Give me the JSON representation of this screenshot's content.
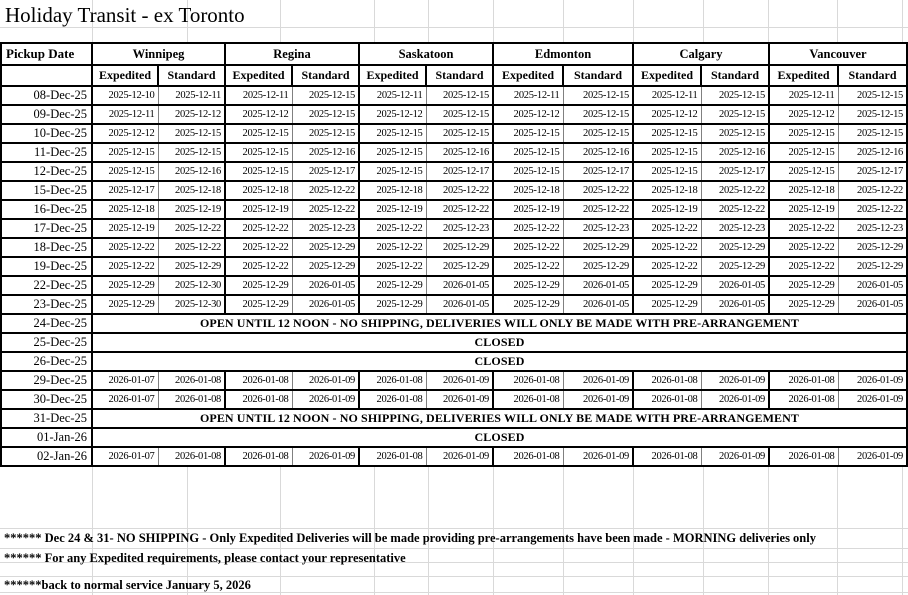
{
  "page": {
    "title": "Holiday Transit - ex Toronto"
  },
  "table": {
    "pickup_header": "Pickup Date",
    "cities": [
      "Winnipeg",
      "Regina",
      "Saskatoon",
      "Edmonton",
      "Calgary",
      "Vancouver"
    ],
    "service_levels": [
      "Expedited",
      "Standard"
    ],
    "rows": [
      {
        "date": "08-Dec-25",
        "type": "data",
        "values": [
          "2025-12-10",
          "2025-12-11",
          "2025-12-11",
          "2025-12-15",
          "2025-12-11",
          "2025-12-15",
          "2025-12-11",
          "2025-12-15",
          "2025-12-11",
          "2025-12-15",
          "2025-12-11",
          "2025-12-15"
        ]
      },
      {
        "date": "09-Dec-25",
        "type": "data",
        "values": [
          "2025-12-11",
          "2025-12-12",
          "2025-12-12",
          "2025-12-15",
          "2025-12-12",
          "2025-12-15",
          "2025-12-12",
          "2025-12-15",
          "2025-12-12",
          "2025-12-15",
          "2025-12-12",
          "2025-12-15"
        ]
      },
      {
        "date": "10-Dec-25",
        "type": "data",
        "values": [
          "2025-12-12",
          "2025-12-15",
          "2025-12-15",
          "2025-12-15",
          "2025-12-15",
          "2025-12-15",
          "2025-12-15",
          "2025-12-15",
          "2025-12-15",
          "2025-12-15",
          "2025-12-15",
          "2025-12-15"
        ]
      },
      {
        "date": "11-Dec-25",
        "type": "data",
        "values": [
          "2025-12-15",
          "2025-12-15",
          "2025-12-15",
          "2025-12-16",
          "2025-12-15",
          "2025-12-16",
          "2025-12-15",
          "2025-12-16",
          "2025-12-15",
          "2025-12-16",
          "2025-12-15",
          "2025-12-16"
        ]
      },
      {
        "date": "12-Dec-25",
        "type": "data",
        "values": [
          "2025-12-15",
          "2025-12-16",
          "2025-12-15",
          "2025-12-17",
          "2025-12-15",
          "2025-12-17",
          "2025-12-15",
          "2025-12-17",
          "2025-12-15",
          "2025-12-17",
          "2025-12-15",
          "2025-12-17"
        ]
      },
      {
        "date": "15-Dec-25",
        "type": "data",
        "values": [
          "2025-12-17",
          "2025-12-18",
          "2025-12-18",
          "2025-12-22",
          "2025-12-18",
          "2025-12-22",
          "2025-12-18",
          "2025-12-22",
          "2025-12-18",
          "2025-12-22",
          "2025-12-18",
          "2025-12-22"
        ]
      },
      {
        "date": "16-Dec-25",
        "type": "data",
        "values": [
          "2025-12-18",
          "2025-12-19",
          "2025-12-19",
          "2025-12-22",
          "2025-12-19",
          "2025-12-22",
          "2025-12-19",
          "2025-12-22",
          "2025-12-19",
          "2025-12-22",
          "2025-12-19",
          "2025-12-22"
        ]
      },
      {
        "date": "17-Dec-25",
        "type": "data",
        "values": [
          "2025-12-19",
          "2025-12-22",
          "2025-12-22",
          "2025-12-23",
          "2025-12-22",
          "2025-12-23",
          "2025-12-22",
          "2025-12-23",
          "2025-12-22",
          "2025-12-23",
          "2025-12-22",
          "2025-12-23"
        ]
      },
      {
        "date": "18-Dec-25",
        "type": "data",
        "values": [
          "2025-12-22",
          "2025-12-22",
          "2025-12-22",
          "2025-12-29",
          "2025-12-22",
          "2025-12-29",
          "2025-12-22",
          "2025-12-29",
          "2025-12-22",
          "2025-12-29",
          "2025-12-22",
          "2025-12-29"
        ]
      },
      {
        "date": "19-Dec-25",
        "type": "data",
        "values": [
          "2025-12-22",
          "2025-12-29",
          "2025-12-22",
          "2025-12-29",
          "2025-12-22",
          "2025-12-29",
          "2025-12-22",
          "2025-12-29",
          "2025-12-22",
          "2025-12-29",
          "2025-12-22",
          "2025-12-29"
        ]
      },
      {
        "date": "22-Dec-25",
        "type": "data",
        "values": [
          "2025-12-29",
          "2025-12-30",
          "2025-12-29",
          "2026-01-05",
          "2025-12-29",
          "2026-01-05",
          "2025-12-29",
          "2026-01-05",
          "2025-12-29",
          "2026-01-05",
          "2025-12-29",
          "2026-01-05"
        ]
      },
      {
        "date": "23-Dec-25",
        "type": "data",
        "values": [
          "2025-12-29",
          "2025-12-30",
          "2025-12-29",
          "2026-01-05",
          "2025-12-29",
          "2026-01-05",
          "2025-12-29",
          "2026-01-05",
          "2025-12-29",
          "2026-01-05",
          "2025-12-29",
          "2026-01-05"
        ]
      },
      {
        "date": "24-Dec-25",
        "type": "message",
        "message": "OPEN UNTIL 12 NOON - NO SHIPPING, DELIVERIES WILL ONLY BE MADE WITH PRE-ARRANGEMENT"
      },
      {
        "date": "25-Dec-25",
        "type": "message",
        "message": "CLOSED"
      },
      {
        "date": "26-Dec-25",
        "type": "message",
        "message": "CLOSED"
      },
      {
        "date": "29-Dec-25",
        "type": "data",
        "values": [
          "2026-01-07",
          "2026-01-08",
          "2026-01-08",
          "2026-01-09",
          "2026-01-08",
          "2026-01-09",
          "2026-01-08",
          "2026-01-09",
          "2026-01-08",
          "2026-01-09",
          "2026-01-08",
          "2026-01-09"
        ]
      },
      {
        "date": "30-Dec-25",
        "type": "data",
        "values": [
          "2026-01-07",
          "2026-01-08",
          "2026-01-08",
          "2026-01-09",
          "2026-01-08",
          "2026-01-09",
          "2026-01-08",
          "2026-01-09",
          "2026-01-08",
          "2026-01-09",
          "2026-01-08",
          "2026-01-09"
        ]
      },
      {
        "date": "31-Dec-25",
        "type": "message",
        "message": "OPEN UNTIL 12 NOON - NO SHIPPING, DELIVERIES WILL ONLY BE MADE WITH PRE-ARRANGEMENT"
      },
      {
        "date": "01-Jan-26",
        "type": "message",
        "message": "CLOSED"
      },
      {
        "date": "02-Jan-26",
        "type": "data",
        "values": [
          "2026-01-07",
          "2026-01-08",
          "2026-01-08",
          "2026-01-09",
          "2026-01-08",
          "2026-01-09",
          "2026-01-08",
          "2026-01-09",
          "2026-01-08",
          "2026-01-09",
          "2026-01-08",
          "2026-01-09"
        ]
      }
    ]
  },
  "notes": {
    "line1": "****** Dec 24 & 31- NO SHIPPING - Only Expedited Deliveries will be made providing pre-arrangements have been made - MORNING deliveries only",
    "line2": "****** For any Expedited requirements, please contact your representative",
    "line3": "******back to normal service January 5, 2026"
  },
  "colors": {
    "border": "#000000",
    "thin_border": "#808080",
    "gridline": "#d9d9d9",
    "text": "#000000",
    "background": "#ffffff"
  }
}
